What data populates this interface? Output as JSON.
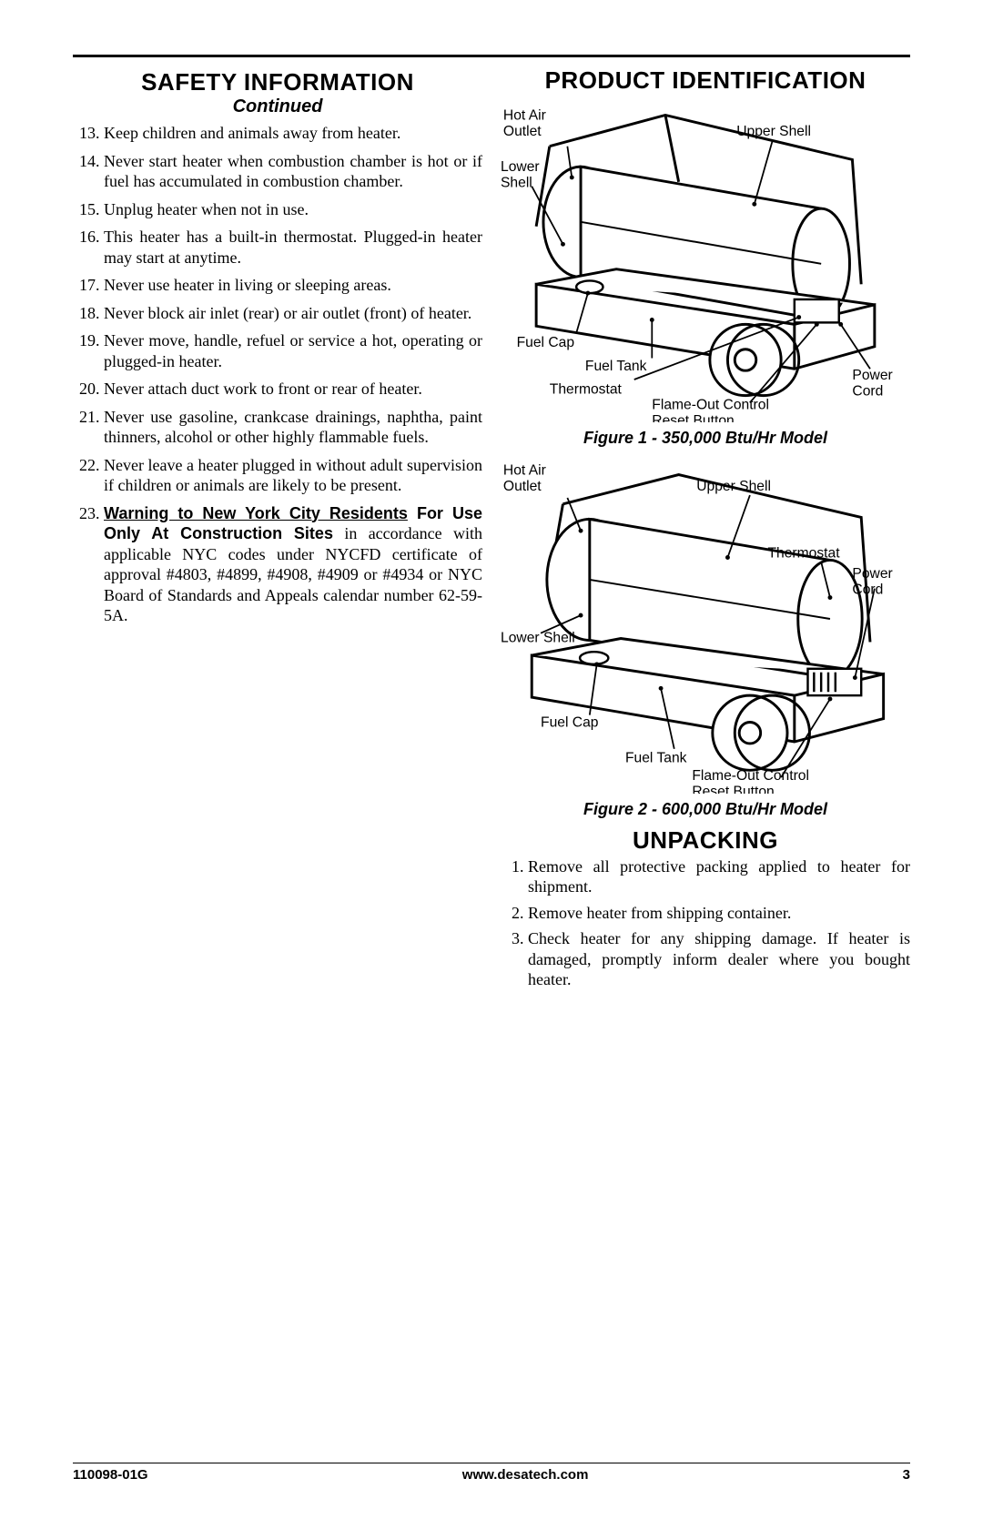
{
  "left": {
    "heading": "SAFETY INFORMATION",
    "subhead": "Continued",
    "list_start": 13,
    "items": [
      "Keep children and animals away from heater.",
      "Never start heater when combustion chamber is hot or if fuel has accumulated in combustion chamber.",
      "Unplug heater when not in use.",
      "This heater has a built-in thermostat. Plugged-in heater may start at anytime.",
      "Never use heater in living or sleeping areas.",
      "Never block air inlet (rear) or air outlet (front) of heater.",
      "Never move, handle, refuel or service a hot, operating or plugged-in heater.",
      "Never attach duct work to front or rear of heater.",
      "Never use gasoline, crankcase drainings, naphtha, paint thinners, alcohol or other highly flammable fuels.",
      "Never leave a heater plugged in without adult supervision if children or animals are likely to be present."
    ],
    "nyc": {
      "warning": "Warning to New York City Residents",
      "use": " For Use Only At Construction Sites",
      "rest": " in accordance with applicable NYC codes under NYCFD certificate of approval #4803, #4899, #4908, #4909 or #4934 or NYC Board of Standards and Appeals calendar number 62-59-5A."
    }
  },
  "right": {
    "heading": "PRODUCT IDENTIFICATION",
    "fig1": {
      "caption": "Figure 1 - 350,000 Btu/Hr Model",
      "labels": {
        "hot_air": "Hot Air Outlet",
        "upper_shell": "Upper Shell",
        "lower_shell": "Lower Shell",
        "fuel_cap": "Fuel Cap",
        "fuel_tank": "Fuel Tank",
        "thermostat": "Thermostat",
        "flame_out": "Flame-Out Control Reset Button",
        "power_cord": "Power Cord"
      }
    },
    "fig2": {
      "caption": "Figure 2 - 600,000 Btu/Hr Model",
      "labels": {
        "hot_air": "Hot Air Outlet",
        "upper_shell": "Upper Shell",
        "lower_shell": "Lower Shell",
        "fuel_cap": "Fuel Cap",
        "fuel_tank": "Fuel Tank",
        "thermostat": "Thermostat",
        "flame_out": "Flame-Out Control Reset Button",
        "power_cord": "Power Cord"
      }
    },
    "unpacking": {
      "heading": "UNPACKING",
      "items": [
        "Remove all protective packing applied to heater for shipment.",
        "Remove heater from shipping container.",
        "Check heater for any shipping damage. If heater is damaged, promptly inform dealer where you bought heater."
      ]
    }
  },
  "footer": {
    "doc": "110098-01G",
    "url": "www.desatech.com",
    "page": "3"
  },
  "style": {
    "heading_fontsize": 26,
    "body_fontsize": 18,
    "label_fontsize": 16,
    "colors": {
      "text": "#000000",
      "bg": "#ffffff"
    }
  }
}
